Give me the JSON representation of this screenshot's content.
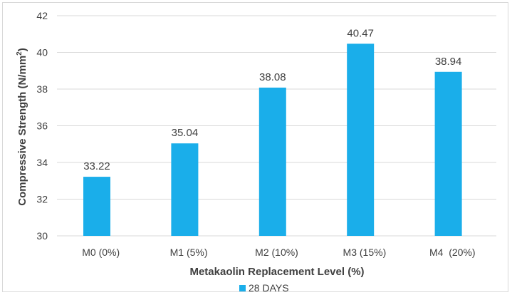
{
  "chart_data": {
    "type": "bar",
    "categories": [
      "M0 (0%)",
      "M1 (5%)",
      "M2 (10%)",
      "M3 (15%)",
      "M4  (20%)"
    ],
    "series": [
      {
        "name": "28 DAYS",
        "values": [
          33.22,
          35.04,
          38.08,
          40.47,
          38.94
        ],
        "color": "#1aaeea"
      }
    ],
    "data_labels": [
      "33.22",
      "35.04",
      "38.08",
      "40.47",
      "38.94"
    ],
    "xlabel": "Metakaolin Replacement Level (%)",
    "ylabel_main": "Compressive Strength (N/mm",
    "ylabel_sup": "2",
    "ylabel_close": ")",
    "ylim": [
      30,
      42
    ],
    "yticks": [
      "30",
      "32",
      "34",
      "36",
      "38",
      "40",
      "42"
    ],
    "grid": true,
    "legend_position": "bottom"
  }
}
